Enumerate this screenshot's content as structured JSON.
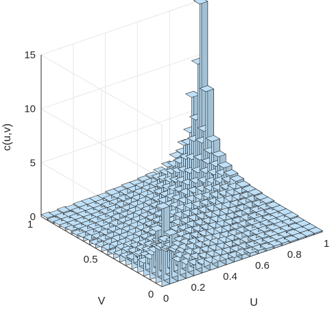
{
  "chart_data": {
    "type": "bar3d",
    "title": "",
    "xlabel": "U",
    "ylabel": "V",
    "zlabel": "c(u,v)",
    "xlim": [
      0,
      1
    ],
    "ylim": [
      0,
      1
    ],
    "zlim": [
      0,
      15
    ],
    "grid": true,
    "bar_color": "#bfe0f7",
    "edge_color": "#222222",
    "x_ticks": [
      0,
      0.2,
      0.4,
      0.6,
      0.8,
      1
    ],
    "x_tick_labels": [
      "0",
      "0.2",
      "0.4",
      "0.6",
      "0.8",
      "1"
    ],
    "y_ticks": [
      0,
      0.5,
      1
    ],
    "y_tick_labels": [
      "0",
      "0.5",
      "1"
    ],
    "z_ticks": [
      0,
      5,
      10,
      15
    ],
    "z_tick_labels": [
      "0",
      "5",
      "10",
      "15"
    ],
    "bins_u": 20,
    "bins_v": 20,
    "bin_width": 0.05,
    "u_centers": [
      0.025,
      0.075,
      0.125,
      0.175,
      0.225,
      0.275,
      0.325,
      0.375,
      0.425,
      0.475,
      0.525,
      0.575,
      0.625,
      0.675,
      0.725,
      0.775,
      0.825,
      0.875,
      0.925,
      0.975
    ],
    "v_centers": [
      0.025,
      0.075,
      0.125,
      0.175,
      0.225,
      0.275,
      0.325,
      0.375,
      0.425,
      0.475,
      0.525,
      0.575,
      0.625,
      0.675,
      0.725,
      0.775,
      0.825,
      0.875,
      0.925,
      0.975
    ],
    "values": [
      [
        7.2,
        4.8,
        1.9,
        1.2,
        1.5,
        0.9,
        0.7,
        0.6,
        0.4,
        0.5,
        0.4,
        0.3,
        0.4,
        0.3,
        0.2,
        0.3,
        0.2,
        0.2,
        0.1,
        0.2
      ],
      [
        4.5,
        3.6,
        2.6,
        1.7,
        1.2,
        1.0,
        0.9,
        0.7,
        0.6,
        0.5,
        0.4,
        0.4,
        0.3,
        0.3,
        0.3,
        0.2,
        0.2,
        0.2,
        0.2,
        0.1
      ],
      [
        1.8,
        2.4,
        2.1,
        1.9,
        1.4,
        1.1,
        0.9,
        0.8,
        0.6,
        0.5,
        0.5,
        0.4,
        0.4,
        0.3,
        0.3,
        0.2,
        0.2,
        0.2,
        0.1,
        0.2
      ],
      [
        1.3,
        1.6,
        1.8,
        1.6,
        1.5,
        1.2,
        1.0,
        0.8,
        0.7,
        0.6,
        0.5,
        0.5,
        0.4,
        0.3,
        0.3,
        0.3,
        0.2,
        0.2,
        0.2,
        0.1
      ],
      [
        1.0,
        1.2,
        1.5,
        1.4,
        1.3,
        1.3,
        1.1,
        0.9,
        0.8,
        0.7,
        0.6,
        0.5,
        0.4,
        0.4,
        0.3,
        0.3,
        0.2,
        0.2,
        0.2,
        0.2
      ],
      [
        0.8,
        1.0,
        1.1,
        1.2,
        1.2,
        1.2,
        1.1,
        1.0,
        0.9,
        0.8,
        0.7,
        0.6,
        0.5,
        0.4,
        0.4,
        0.3,
        0.3,
        0.2,
        0.2,
        0.2
      ],
      [
        0.7,
        0.8,
        0.9,
        1.0,
        1.1,
        1.0,
        1.1,
        1.0,
        1.0,
        0.9,
        0.8,
        0.7,
        0.6,
        0.5,
        0.4,
        0.4,
        0.3,
        0.3,
        0.2,
        0.2
      ],
      [
        0.6,
        0.7,
        0.8,
        0.9,
        0.9,
        1.0,
        0.9,
        1.1,
        1.0,
        1.0,
        0.9,
        0.8,
        0.7,
        0.6,
        0.5,
        0.4,
        0.4,
        0.3,
        0.3,
        0.2
      ],
      [
        0.5,
        0.6,
        0.7,
        0.8,
        0.8,
        0.9,
        1.0,
        0.9,
        1.1,
        1.0,
        1.0,
        0.9,
        0.8,
        0.7,
        0.6,
        0.5,
        0.4,
        0.4,
        0.3,
        0.3
      ],
      [
        0.4,
        0.5,
        0.6,
        0.7,
        0.7,
        0.8,
        0.9,
        1.0,
        1.0,
        1.2,
        1.1,
        1.0,
        0.9,
        0.8,
        0.7,
        0.6,
        0.5,
        0.4,
        0.4,
        0.3
      ],
      [
        0.4,
        0.4,
        0.5,
        0.6,
        0.6,
        0.7,
        0.8,
        0.9,
        1.0,
        1.1,
        1.3,
        1.2,
        1.0,
        1.0,
        0.8,
        0.7,
        0.6,
        0.5,
        0.4,
        0.4
      ],
      [
        0.3,
        0.4,
        0.4,
        0.5,
        0.5,
        0.6,
        0.7,
        0.8,
        0.9,
        1.0,
        1.2,
        1.4,
        1.3,
        1.1,
        1.0,
        0.9,
        0.7,
        0.6,
        0.5,
        0.4
      ],
      [
        0.3,
        0.3,
        0.4,
        0.4,
        0.4,
        0.5,
        0.6,
        0.7,
        0.8,
        0.9,
        1.1,
        1.3,
        1.6,
        1.5,
        1.3,
        1.1,
        0.9,
        0.7,
        0.6,
        0.5
      ],
      [
        0.2,
        0.3,
        0.3,
        0.4,
        0.4,
        0.4,
        0.5,
        0.6,
        0.7,
        0.8,
        1.0,
        1.2,
        1.5,
        1.9,
        1.8,
        1.5,
        1.2,
        1.0,
        0.8,
        0.6
      ],
      [
        0.2,
        0.2,
        0.3,
        0.3,
        0.3,
        0.4,
        0.4,
        0.5,
        0.6,
        0.7,
        0.9,
        1.1,
        1.4,
        1.8,
        2.4,
        2.2,
        1.8,
        1.4,
        1.0,
        0.8
      ],
      [
        0.2,
        0.2,
        0.2,
        0.3,
        0.3,
        0.3,
        0.4,
        0.4,
        0.5,
        0.6,
        0.7,
        0.9,
        1.2,
        1.6,
        2.2,
        3.1,
        2.8,
        2.1,
        1.5,
        1.1
      ],
      [
        0.1,
        0.2,
        0.2,
        0.2,
        0.3,
        0.3,
        0.3,
        0.4,
        0.4,
        0.5,
        0.6,
        0.8,
        1.0,
        1.3,
        1.9,
        2.8,
        4.2,
        3.6,
        2.4,
        1.7
      ],
      [
        0.1,
        0.1,
        0.2,
        0.2,
        0.2,
        0.2,
        0.3,
        0.3,
        0.4,
        0.4,
        0.5,
        0.6,
        0.8,
        1.1,
        1.5,
        2.2,
        3.8,
        5.6,
        4.1,
        2.6
      ],
      [
        0.1,
        0.1,
        0.1,
        0.2,
        0.2,
        0.2,
        0.2,
        0.3,
        0.3,
        0.4,
        0.4,
        0.5,
        0.6,
        0.9,
        1.2,
        1.7,
        2.6,
        4.3,
        10.2,
        6.8
      ],
      [
        0.1,
        0.1,
        0.1,
        0.1,
        0.2,
        0.2,
        0.2,
        0.2,
        0.3,
        0.3,
        0.4,
        0.4,
        0.5,
        0.7,
        0.9,
        1.3,
        2.0,
        3.1,
        7.4,
        15.2
      ]
    ]
  }
}
